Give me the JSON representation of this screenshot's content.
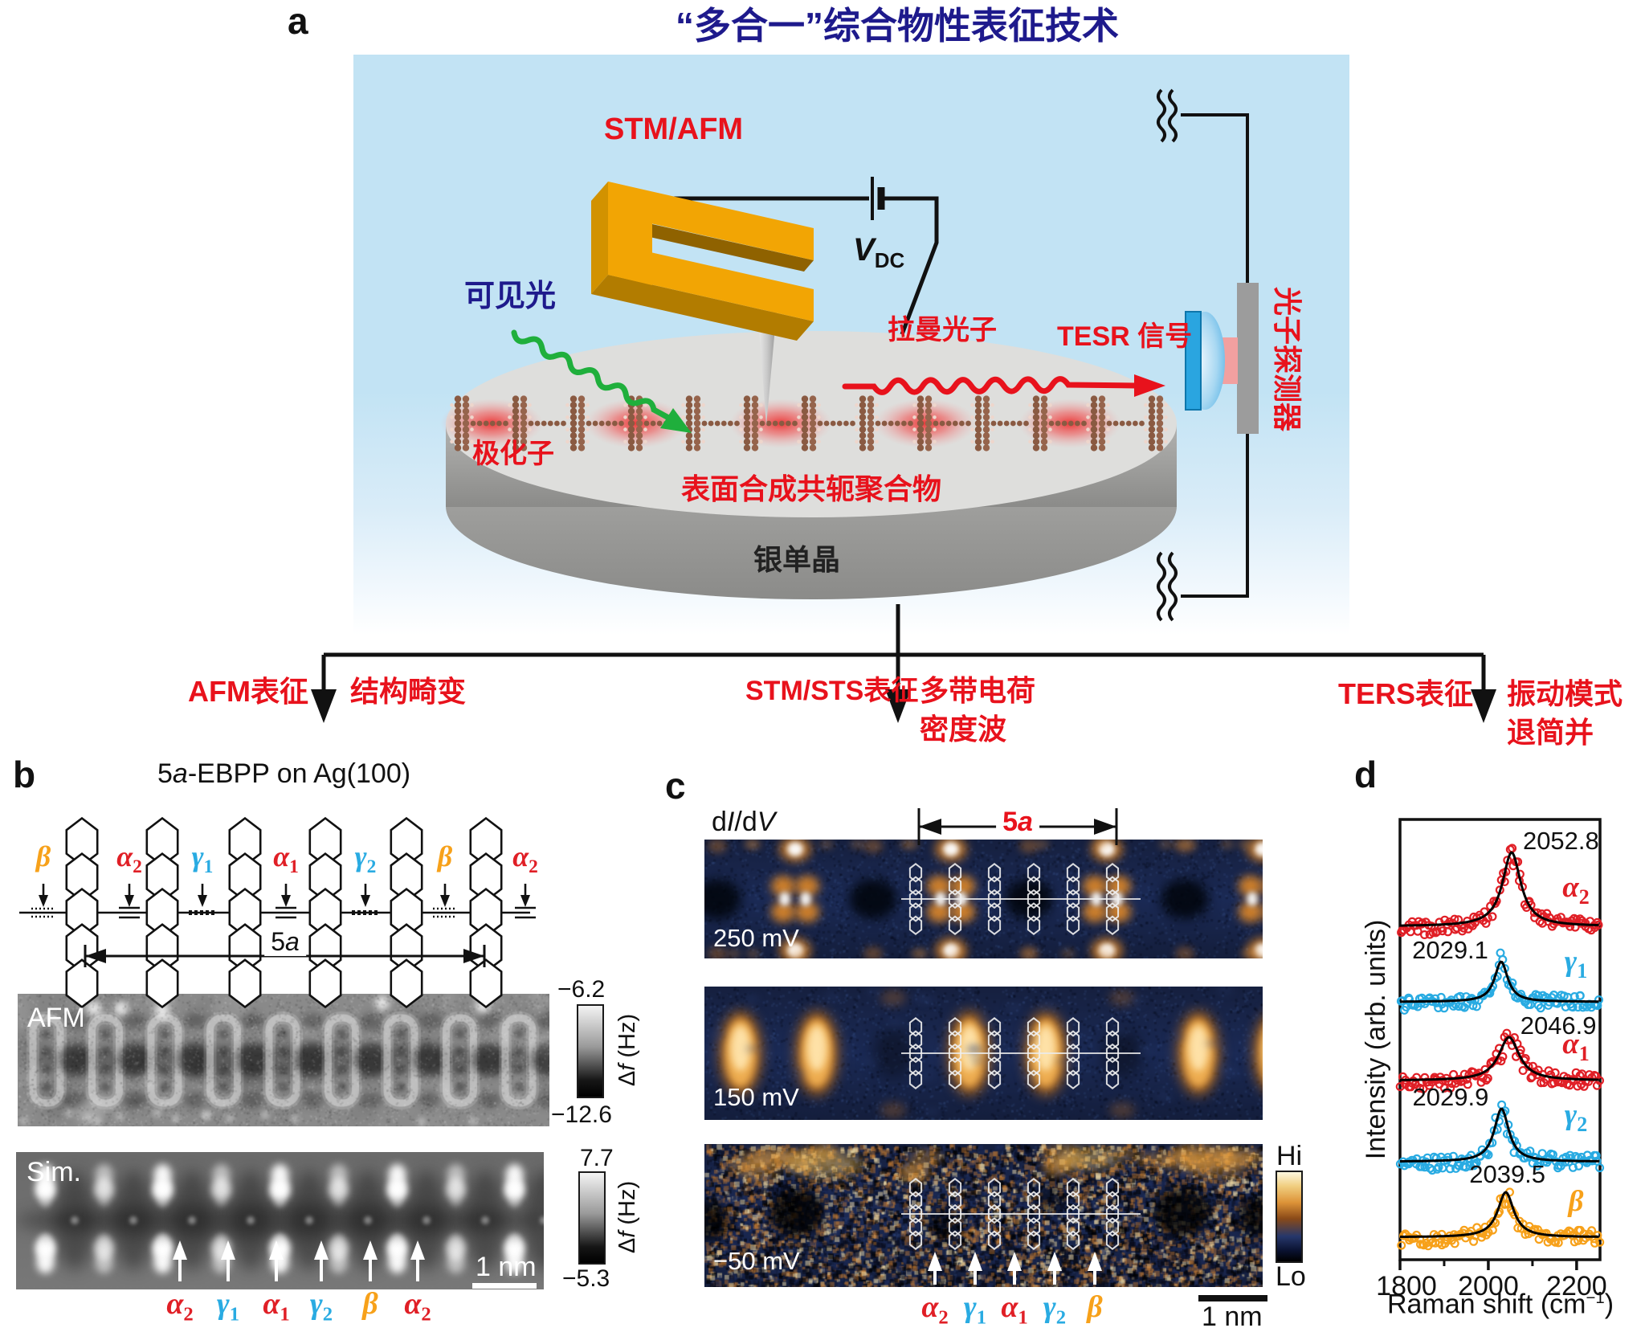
{
  "title": "“多合一”综合物性表征技术",
  "panel_a": {
    "label": "a",
    "stm_afm": "STM/AFM",
    "v": "V",
    "v_sub": "DC",
    "visible_light": "可见光",
    "polaron": "极化子",
    "raman_photon": "拉曼光子",
    "tesr_signal": "TESR 信号",
    "photon_detector": "光子探测器",
    "polymer": "表面合成共轭聚合物",
    "substrate": "银单晶"
  },
  "branches": [
    {
      "method": "AFM表征",
      "result1": "结构畸变",
      "result2": ""
    },
    {
      "method": "STM/STS表征",
      "result1": "多带电荷",
      "result2": "密度波"
    },
    {
      "method": "TERS表征",
      "result1": "振动模式",
      "result2": "退简并"
    }
  ],
  "panel_b": {
    "label": "b",
    "title_num": "5",
    "title_a": "a",
    "title_rest": "-EBPP on Ag(100)",
    "bond_labels": [
      {
        "base": "β",
        "sub": "",
        "color": "#f7a11a",
        "bond": "dotted"
      },
      {
        "base": "α",
        "sub": "2",
        "color": "#e01f26",
        "bond": "triple"
      },
      {
        "base": "γ",
        "sub": "1",
        "color": "#29abe2",
        "bond": "dashed"
      },
      {
        "base": "α",
        "sub": "1",
        "color": "#e01f26",
        "bond": "triple"
      },
      {
        "base": "γ",
        "sub": "2",
        "color": "#29abe2",
        "bond": "dashed"
      },
      {
        "base": "β",
        "sub": "",
        "color": "#f7a11a",
        "bond": "dotted"
      },
      {
        "base": "α",
        "sub": "2",
        "color": "#e01f26",
        "bond": "triple"
      }
    ],
    "dim_num": "5",
    "dim_a": "a",
    "afm_label": "AFM",
    "afm_scale_top": "−6.2",
    "afm_scale_bottom": "−12.6",
    "delta_pre": "Δ",
    "delta_it": "f",
    "delta_rest": " (Hz)",
    "sim_label": "Sim.",
    "sim_scale_top": "7.7",
    "sim_scale_bottom": "−5.3",
    "scalebar": "1 nm",
    "arrow_labels": [
      {
        "base": "α",
        "sub": "2",
        "color": "#e01f26"
      },
      {
        "base": "γ",
        "sub": "1",
        "color": "#29abe2"
      },
      {
        "base": "α",
        "sub": "1",
        "color": "#e01f26"
      },
      {
        "base": "γ",
        "sub": "2",
        "color": "#29abe2"
      },
      {
        "base": "β",
        "sub": "",
        "color": "#f7a11a"
      },
      {
        "base": "α",
        "sub": "2",
        "color": "#e01f26"
      }
    ]
  },
  "panel_c": {
    "label": "c",
    "didv_d1": "d",
    "didv_i": "I",
    "didv_d2": "/d",
    "didv_v": "V",
    "dim_num": "5",
    "dim_a": "a",
    "maps": [
      {
        "bias": "250 mV"
      },
      {
        "bias": "150 mV"
      },
      {
        "bias": "−50 mV"
      }
    ],
    "hi": "Hi",
    "lo": "Lo",
    "scalebar": "1 nm",
    "arrow_labels": [
      {
        "base": "α",
        "sub": "2",
        "color": "#e01f26"
      },
      {
        "base": "γ",
        "sub": "1",
        "color": "#29abe2"
      },
      {
        "base": "α",
        "sub": "1",
        "color": "#e01f26"
      },
      {
        "base": "γ",
        "sub": "2",
        "color": "#29abe2"
      },
      {
        "base": "β",
        "sub": "",
        "color": "#f7a11a"
      }
    ]
  },
  "panel_d": {
    "label": "d"
  },
  "chart_data": {
    "type": "line",
    "title": "",
    "xlabel": "Raman shift (cm⁻¹)",
    "xlabel_parts": [
      "Raman shift (cm",
      "−1",
      ")"
    ],
    "ylabel": "Intensity (arb. units)",
    "xlim": [
      1800,
      2253
    ],
    "xticks": [
      1800,
      2000,
      2200
    ],
    "xticks_minor": [
      1900,
      2100
    ],
    "grid": false,
    "legend_position": "inline-right",
    "series": [
      {
        "base": "α",
        "sub": "2",
        "color": "#e01f26",
        "center": 2052.8,
        "peak_label": "2052.8",
        "hwhm": 25,
        "amplitude": 1.0,
        "label_side": "right"
      },
      {
        "base": "γ",
        "sub": "1",
        "color": "#29abe2",
        "center": 2029.1,
        "peak_label": "2029.1",
        "hwhm": 18,
        "amplitude": 0.55,
        "label_side": "left"
      },
      {
        "base": "α",
        "sub": "1",
        "color": "#e01f26",
        "center": 2046.9,
        "peak_label": "2046.9",
        "hwhm": 28,
        "amplitude": 0.6,
        "label_side": "right"
      },
      {
        "base": "γ",
        "sub": "2",
        "color": "#29abe2",
        "center": 2029.9,
        "peak_label": "2029.9",
        "hwhm": 20,
        "amplitude": 0.74,
        "label_side": "left"
      },
      {
        "base": "β",
        "sub": "",
        "color": "#f7a11a",
        "center": 2039.5,
        "peak_label": "2039.5",
        "hwhm": 22,
        "amplitude": 0.62,
        "label_side": "above"
      }
    ]
  },
  "colors": {
    "accent_red": "#e8121c",
    "navy": "#1e1a8c",
    "panel_bg": "#c2e3f4",
    "greek_red": "#e01f26",
    "greek_blue": "#29abe2",
    "greek_orange": "#f7a11a",
    "hi_lo_gradient": [
      "#fdf8e0",
      "#f0cd7e",
      "#dd9338",
      "#8a4a18",
      "#26376b",
      "#0a1230",
      "#000000"
    ]
  }
}
